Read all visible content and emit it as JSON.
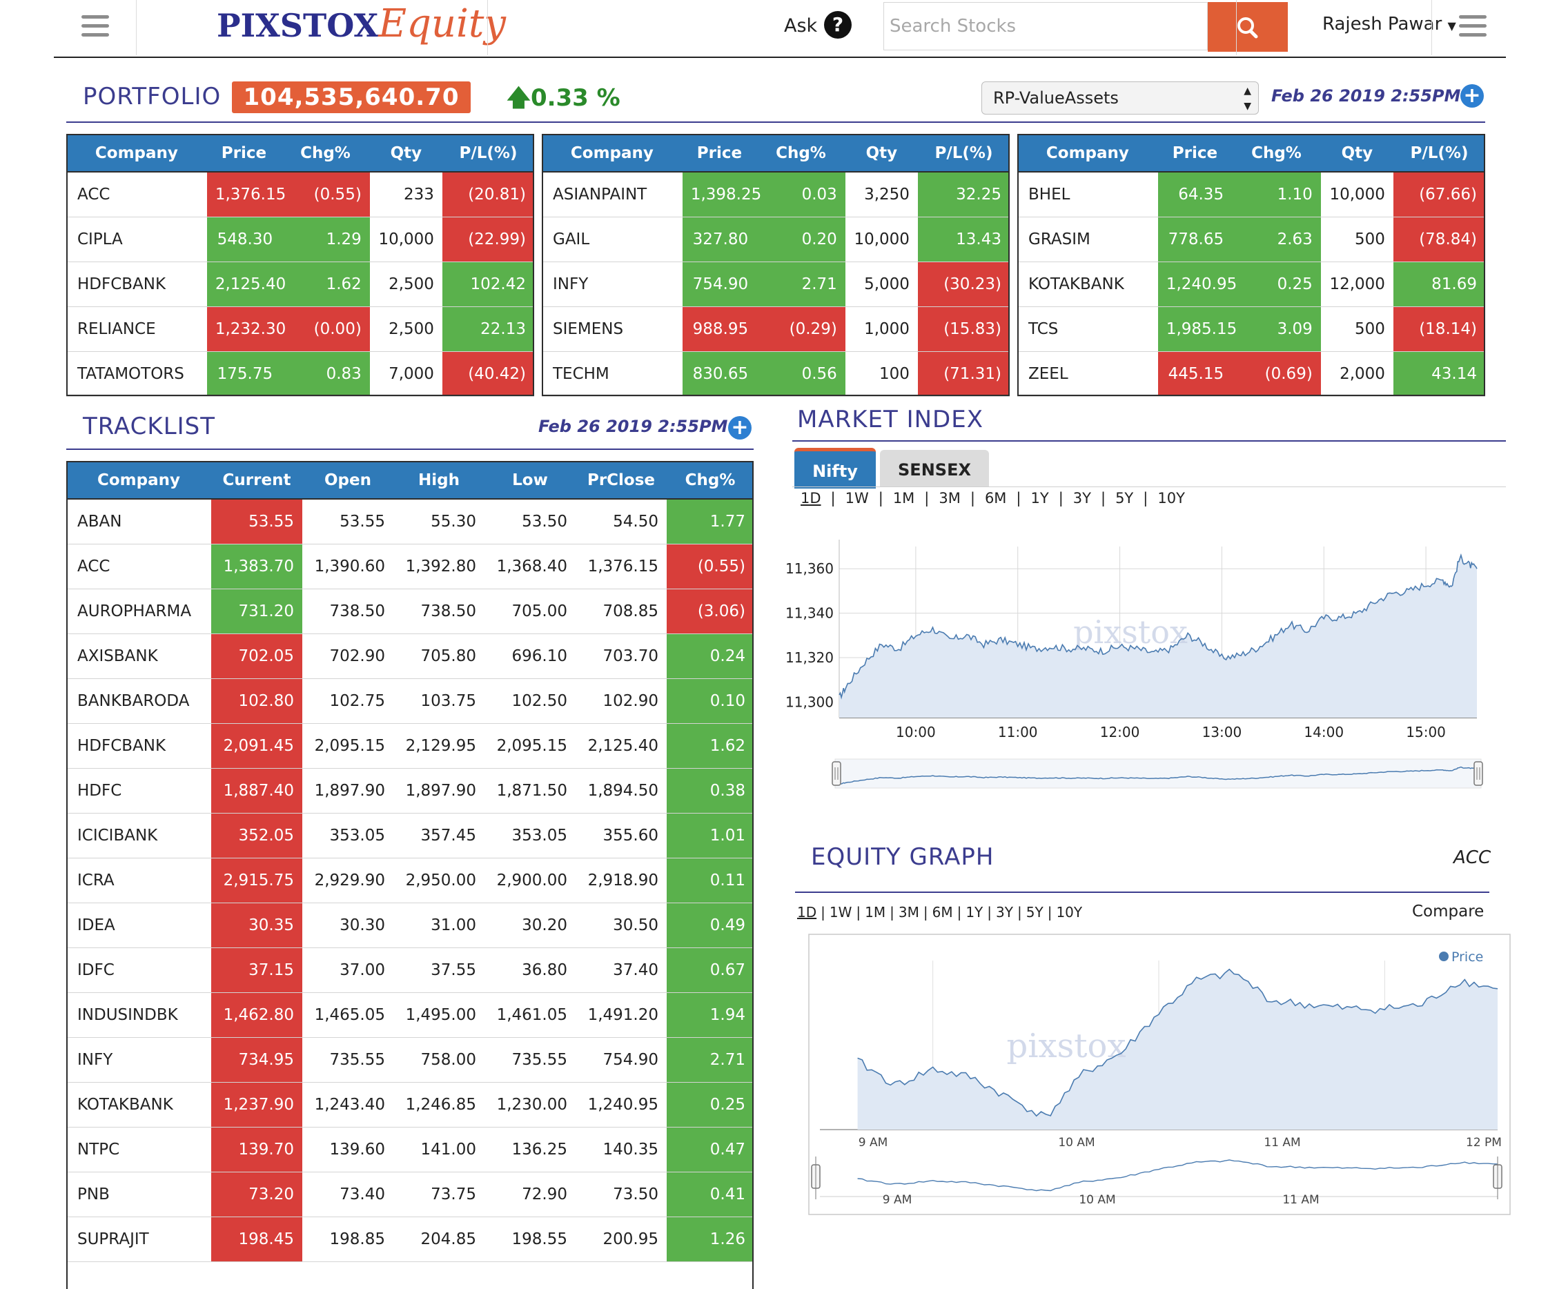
{
  "header": {
    "logo_part1": "PIXSTOX",
    "logo_part2": "Equity",
    "ask_label": "Ask",
    "ask_icon": "question-circle-icon",
    "search_placeholder": "Search Stocks",
    "search_icon": "search-icon",
    "user_name": "Rajesh Pawar",
    "menu_icon": "hamburger-icon"
  },
  "portfolio": {
    "title": "PORTFOLIO",
    "value": "104,535,640.70",
    "change": "0.33 %",
    "change_direction": "up",
    "selected_portfolio": "RP-ValueAssets",
    "timestamp": "Feb 26 2019 2:55PM",
    "columns": [
      "Company",
      "Price",
      "Chg%",
      "Qty",
      "P/L(%)"
    ],
    "tables": [
      {
        "rows": [
          {
            "company": "ACC",
            "price": "1,376.15",
            "chg": "(0.55)",
            "qty": "233",
            "pl": "(20.81)",
            "price_color": "red",
            "chg_color": "red",
            "pl_color": "red"
          },
          {
            "company": "CIPLA",
            "price": "548.30",
            "chg": "1.29",
            "qty": "10,000",
            "pl": "(22.99)",
            "price_color": "green",
            "chg_color": "green",
            "pl_color": "red"
          },
          {
            "company": "HDFCBANK",
            "price": "2,125.40",
            "chg": "1.62",
            "qty": "2,500",
            "pl": "102.42",
            "price_color": "green",
            "chg_color": "green",
            "pl_color": "green"
          },
          {
            "company": "RELIANCE",
            "price": "1,232.30",
            "chg": "(0.00)",
            "qty": "2,500",
            "pl": "22.13",
            "price_color": "red",
            "chg_color": "red",
            "pl_color": "green"
          },
          {
            "company": "TATAMOTORS",
            "price": "175.75",
            "chg": "0.83",
            "qty": "7,000",
            "pl": "(40.42)",
            "price_color": "green",
            "chg_color": "green",
            "pl_color": "red"
          }
        ]
      },
      {
        "rows": [
          {
            "company": "ASIANPAINT",
            "price": "1,398.25",
            "chg": "0.03",
            "qty": "3,250",
            "pl": "32.25",
            "price_color": "green",
            "chg_color": "green",
            "pl_color": "green"
          },
          {
            "company": "GAIL",
            "price": "327.80",
            "chg": "0.20",
            "qty": "10,000",
            "pl": "13.43",
            "price_color": "green",
            "chg_color": "green",
            "pl_color": "green"
          },
          {
            "company": "INFY",
            "price": "754.90",
            "chg": "2.71",
            "qty": "5,000",
            "pl": "(30.23)",
            "price_color": "green",
            "chg_color": "green",
            "pl_color": "red"
          },
          {
            "company": "SIEMENS",
            "price": "988.95",
            "chg": "(0.29)",
            "qty": "1,000",
            "pl": "(15.83)",
            "price_color": "red",
            "chg_color": "red",
            "pl_color": "red"
          },
          {
            "company": "TECHM",
            "price": "830.65",
            "chg": "0.56",
            "qty": "100",
            "pl": "(71.31)",
            "price_color": "green",
            "chg_color": "green",
            "pl_color": "red"
          }
        ]
      },
      {
        "rows": [
          {
            "company": "BHEL",
            "price": "64.35",
            "chg": "1.10",
            "qty": "10,000",
            "pl": "(67.66)",
            "price_color": "green",
            "chg_color": "green",
            "pl_color": "red"
          },
          {
            "company": "GRASIM",
            "price": "778.65",
            "chg": "2.63",
            "qty": "500",
            "pl": "(78.84)",
            "price_color": "green",
            "chg_color": "green",
            "pl_color": "red"
          },
          {
            "company": "KOTAKBANK",
            "price": "1,240.95",
            "chg": "0.25",
            "qty": "12,000",
            "pl": "81.69",
            "price_color": "green",
            "chg_color": "green",
            "pl_color": "green"
          },
          {
            "company": "TCS",
            "price": "1,985.15",
            "chg": "3.09",
            "qty": "500",
            "pl": "(18.14)",
            "price_color": "green",
            "chg_color": "green",
            "pl_color": "red"
          },
          {
            "company": "ZEEL",
            "price": "445.15",
            "chg": "(0.69)",
            "qty": "2,000",
            "pl": "43.14",
            "price_color": "red",
            "chg_color": "red",
            "pl_color": "green"
          }
        ]
      }
    ]
  },
  "tracklist": {
    "title": "TRACKLIST",
    "timestamp": "Feb 26 2019 2:55PM",
    "columns": [
      "Company",
      "Current",
      "Open",
      "High",
      "Low",
      "PrClose",
      "Chg%"
    ],
    "rows": [
      {
        "company": "ABAN",
        "current": "53.55",
        "open": "53.55",
        "high": "55.30",
        "low": "53.50",
        "prclose": "54.50",
        "chg": "1.77",
        "current_color": "red",
        "chg_color": "green"
      },
      {
        "company": "ACC",
        "current": "1,383.70",
        "open": "1,390.60",
        "high": "1,392.80",
        "low": "1,368.40",
        "prclose": "1,376.15",
        "chg": "(0.55)",
        "current_color": "green",
        "chg_color": "red"
      },
      {
        "company": "AUROPHARMA",
        "current": "731.20",
        "open": "738.50",
        "high": "738.50",
        "low": "705.00",
        "prclose": "708.85",
        "chg": "(3.06)",
        "current_color": "green",
        "chg_color": "red"
      },
      {
        "company": "AXISBANK",
        "current": "702.05",
        "open": "702.90",
        "high": "705.80",
        "low": "696.10",
        "prclose": "703.70",
        "chg": "0.24",
        "current_color": "red",
        "chg_color": "green"
      },
      {
        "company": "BANKBARODA",
        "current": "102.80",
        "open": "102.75",
        "high": "103.75",
        "low": "102.50",
        "prclose": "102.90",
        "chg": "0.10",
        "current_color": "red",
        "chg_color": "green"
      },
      {
        "company": "HDFCBANK",
        "current": "2,091.45",
        "open": "2,095.15",
        "high": "2,129.95",
        "low": "2,095.15",
        "prclose": "2,125.40",
        "chg": "1.62",
        "current_color": "red",
        "chg_color": "green"
      },
      {
        "company": "HDFC",
        "current": "1,887.40",
        "open": "1,897.90",
        "high": "1,897.90",
        "low": "1,871.50",
        "prclose": "1,894.50",
        "chg": "0.38",
        "current_color": "red",
        "chg_color": "green"
      },
      {
        "company": "ICICIBANK",
        "current": "352.05",
        "open": "353.05",
        "high": "357.45",
        "low": "353.05",
        "prclose": "355.60",
        "chg": "1.01",
        "current_color": "red",
        "chg_color": "green"
      },
      {
        "company": "ICRA",
        "current": "2,915.75",
        "open": "2,929.90",
        "high": "2,950.00",
        "low": "2,900.00",
        "prclose": "2,918.90",
        "chg": "0.11",
        "current_color": "red",
        "chg_color": "green"
      },
      {
        "company": "IDEA",
        "current": "30.35",
        "open": "30.30",
        "high": "31.00",
        "low": "30.20",
        "prclose": "30.50",
        "chg": "0.49",
        "current_color": "red",
        "chg_color": "green"
      },
      {
        "company": "IDFC",
        "current": "37.15",
        "open": "37.00",
        "high": "37.55",
        "low": "36.80",
        "prclose": "37.40",
        "chg": "0.67",
        "current_color": "red",
        "chg_color": "green"
      },
      {
        "company": "INDUSINDBK",
        "current": "1,462.80",
        "open": "1,465.05",
        "high": "1,495.00",
        "low": "1,461.05",
        "prclose": "1,491.20",
        "chg": "1.94",
        "current_color": "red",
        "chg_color": "green"
      },
      {
        "company": "INFY",
        "current": "734.95",
        "open": "735.55",
        "high": "758.00",
        "low": "735.55",
        "prclose": "754.90",
        "chg": "2.71",
        "current_color": "red",
        "chg_color": "green"
      },
      {
        "company": "KOTAKBANK",
        "current": "1,237.90",
        "open": "1,243.40",
        "high": "1,246.85",
        "low": "1,230.00",
        "prclose": "1,240.95",
        "chg": "0.25",
        "current_color": "red",
        "chg_color": "green"
      },
      {
        "company": "NTPC",
        "current": "139.70",
        "open": "139.60",
        "high": "141.00",
        "low": "136.25",
        "prclose": "140.35",
        "chg": "0.47",
        "current_color": "red",
        "chg_color": "green"
      },
      {
        "company": "PNB",
        "current": "73.20",
        "open": "73.40",
        "high": "73.75",
        "low": "72.90",
        "prclose": "73.50",
        "chg": "0.41",
        "current_color": "red",
        "chg_color": "green"
      },
      {
        "company": "SUPRAJIT",
        "current": "198.45",
        "open": "198.85",
        "high": "204.85",
        "low": "198.55",
        "prclose": "200.95",
        "chg": "1.26",
        "current_color": "red",
        "chg_color": "green"
      }
    ]
  },
  "market_index": {
    "title": "MARKET INDEX",
    "tabs": [
      "Nifty",
      "SENSEX"
    ],
    "active_tab": "Nifty",
    "ranges": [
      "1D",
      "1W",
      "1M",
      "3M",
      "6M",
      "1Y",
      "3Y",
      "5Y",
      "10Y"
    ],
    "active_range": "1D",
    "watermark": "pixstox"
  },
  "equity_graph": {
    "title": "EQUITY GRAPH",
    "symbol": "ACC",
    "ranges": [
      "1D",
      "1W",
      "1M",
      "3M",
      "6M",
      "1Y",
      "3Y",
      "5Y",
      "10Y"
    ],
    "active_range": "1D",
    "compare_label": "Compare",
    "watermark": "pixstox"
  },
  "colors": {
    "green": "#5ab14c",
    "red": "#d83e3a",
    "header_blue": "#2f7ab8",
    "accent_orange": "#e35f38",
    "title_navy": "#3b3c8e",
    "line_blue": "#4a7bb0"
  },
  "chart_data": [
    {
      "type": "area",
      "name": "nifty-intraday",
      "x_tick_labels": [
        "10:00",
        "11:00",
        "12:00",
        "13:00",
        "14:00",
        "15:00"
      ],
      "y_tick_labels": [
        "11,300",
        "11,320",
        "11,340",
        "11,360"
      ],
      "ylim": [
        11293,
        11370
      ],
      "x": [
        "09:15",
        "09:20",
        "09:30",
        "09:40",
        "09:50",
        "10:00",
        "10:10",
        "10:20",
        "10:30",
        "10:40",
        "10:50",
        "11:00",
        "11:10",
        "11:20",
        "11:30",
        "11:40",
        "11:50",
        "12:00",
        "12:10",
        "12:20",
        "12:30",
        "12:40",
        "12:50",
        "13:00",
        "13:10",
        "13:20",
        "13:30",
        "13:40",
        "13:50",
        "14:00",
        "14:10",
        "14:20",
        "14:30",
        "14:40",
        "14:50",
        "15:00",
        "15:10",
        "15:15",
        "15:20",
        "15:25",
        "15:30"
      ],
      "series": [
        {
          "values": [
            11302,
            11308,
            11318,
            11326,
            11324,
            11330,
            11333,
            11328,
            11330,
            11326,
            11328,
            11326,
            11324,
            11325,
            11324,
            11324,
            11323,
            11325,
            11324,
            11322,
            11324,
            11330,
            11326,
            11320,
            11321,
            11324,
            11329,
            11335,
            11332,
            11338,
            11338,
            11340,
            11345,
            11349,
            11350,
            11353,
            11355,
            11352,
            11365,
            11362,
            11360
          ]
        }
      ],
      "grid": true,
      "legend": false
    },
    {
      "type": "area",
      "name": "acc-intraday",
      "x_tick_labels": [
        "9 AM",
        "10 AM",
        "11 AM",
        "12 PM"
      ],
      "x": [
        "9:10",
        "9:20",
        "9:30",
        "9:40",
        "9:50",
        "10:00",
        "10:10",
        "10:20",
        "10:30",
        "10:40",
        "10:50",
        "11:00",
        "11:10",
        "11:20",
        "11:30",
        "11:40",
        "11:50",
        "12:00"
      ],
      "series": [
        {
          "name": "Price",
          "values": [
            1379.5,
            1376.5,
            1378.5,
            1377.5,
            1375.0,
            1372.5,
            1378.0,
            1380.5,
            1385.5,
            1389.5,
            1390.5,
            1387.0,
            1386.5,
            1386.0,
            1386.0,
            1386.5,
            1389.5,
            1388.5
          ]
        }
      ],
      "ylim": [
        1371,
        1392
      ],
      "legend": "top-right",
      "grid": true
    }
  ]
}
